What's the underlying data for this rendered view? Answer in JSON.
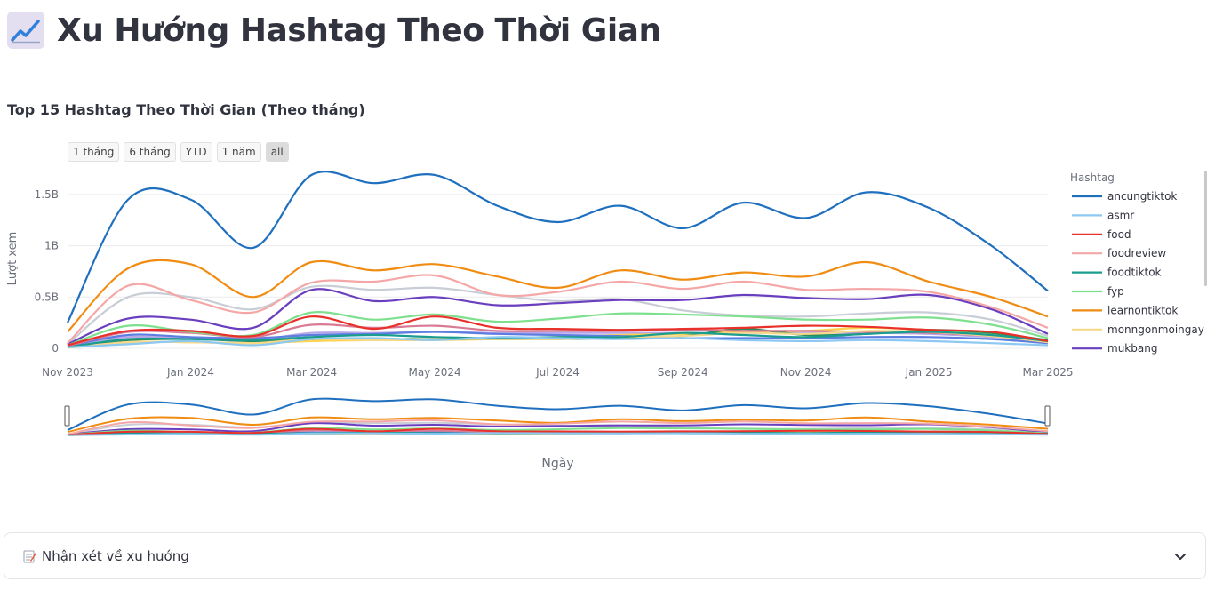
{
  "page": {
    "title": "Xu Hướng Hashtag Theo Thời Gian",
    "title_icon": "chart-increasing-icon"
  },
  "section": {
    "subtitle": "Top 15 Hashtag Theo Thời Gian (Theo tháng)"
  },
  "range_selector": {
    "buttons": [
      "1 tháng",
      "6 tháng",
      "YTD",
      "1 năm",
      "all"
    ],
    "active": "all"
  },
  "expander": {
    "label": "Nhận xét về xu hướng",
    "icon": "memo-icon",
    "chevron": "chevron-down-icon"
  },
  "chart_data": {
    "type": "line",
    "title": "",
    "xlabel": "Ngày",
    "ylabel": "Lượt xem",
    "x": [
      "2023-11-01",
      "2023-12-01",
      "2024-01-01",
      "2024-02-01",
      "2024-03-01",
      "2024-04-01",
      "2024-05-01",
      "2024-06-01",
      "2024-07-01",
      "2024-08-01",
      "2024-09-01",
      "2024-10-01",
      "2024-11-01",
      "2024-12-01",
      "2025-01-01",
      "2025-02-01",
      "2025-03-01"
    ],
    "x_ticks": [
      "Nov 2023",
      "Jan 2024",
      "Mar 2024",
      "May 2024",
      "Jul 2024",
      "Sep 2024",
      "Nov 2024",
      "Jan 2025",
      "Mar 2025"
    ],
    "y_ticks": [
      "0",
      "0.5B",
      "1B",
      "1.5B"
    ],
    "ylim": [
      0,
      1750000000
    ],
    "legend_title": "Hashtag",
    "legend_position": "right",
    "grid": true,
    "range_slider": true,
    "series": [
      {
        "name": "ancungtiktok",
        "color": "#1f6fbf",
        "values": [
          250000000,
          1450000000,
          1450000000,
          980000000,
          1690000000,
          1610000000,
          1690000000,
          1390000000,
          1230000000,
          1390000000,
          1170000000,
          1420000000,
          1270000000,
          1520000000,
          1370000000,
          1000000000,
          560000000
        ]
      },
      {
        "name": "asmr",
        "color": "#8cc8f2",
        "values": [
          10000000,
          40000000,
          70000000,
          30000000,
          90000000,
          100000000,
          80000000,
          110000000,
          100000000,
          90000000,
          100000000,
          80000000,
          70000000,
          80000000,
          70000000,
          50000000,
          30000000
        ]
      },
      {
        "name": "food",
        "color": "#e8312a",
        "values": [
          30000000,
          170000000,
          170000000,
          120000000,
          310000000,
          190000000,
          310000000,
          200000000,
          190000000,
          180000000,
          190000000,
          200000000,
          220000000,
          210000000,
          180000000,
          160000000,
          70000000
        ]
      },
      {
        "name": "foodreview",
        "color": "#f5a6a6",
        "values": [
          50000000,
          610000000,
          470000000,
          350000000,
          640000000,
          650000000,
          710000000,
          520000000,
          550000000,
          650000000,
          580000000,
          650000000,
          570000000,
          580000000,
          550000000,
          400000000,
          200000000
        ]
      },
      {
        "name": "foodtiktok",
        "color": "#1a9c8f",
        "values": [
          10000000,
          90000000,
          90000000,
          80000000,
          110000000,
          130000000,
          110000000,
          100000000,
          110000000,
          110000000,
          150000000,
          130000000,
          110000000,
          140000000,
          160000000,
          130000000,
          70000000
        ]
      },
      {
        "name": "fyp",
        "color": "#7ee08f",
        "values": [
          30000000,
          220000000,
          160000000,
          130000000,
          350000000,
          280000000,
          330000000,
          260000000,
          290000000,
          340000000,
          330000000,
          310000000,
          280000000,
          280000000,
          300000000,
          230000000,
          100000000
        ]
      },
      {
        "name": "learnontiktok",
        "color": "#f08c12",
        "values": [
          160000000,
          780000000,
          820000000,
          500000000,
          840000000,
          760000000,
          820000000,
          700000000,
          590000000,
          760000000,
          670000000,
          740000000,
          700000000,
          840000000,
          650000000,
          500000000,
          310000000
        ]
      },
      {
        "name": "monngonmoingay",
        "color": "#f5d98a",
        "values": [
          5000000,
          60000000,
          60000000,
          50000000,
          90000000,
          80000000,
          90000000,
          90000000,
          90000000,
          110000000,
          120000000,
          150000000,
          140000000,
          170000000,
          160000000,
          120000000,
          60000000
        ]
      },
      {
        "name": "mukbang",
        "color": "#6a3fbf",
        "values": [
          40000000,
          290000000,
          280000000,
          200000000,
          570000000,
          460000000,
          500000000,
          420000000,
          440000000,
          470000000,
          470000000,
          520000000,
          490000000,
          480000000,
          520000000,
          380000000,
          140000000
        ]
      },
      {
        "name": "",
        "color": "#c9cdd6",
        "values": [
          40000000,
          500000000,
          500000000,
          380000000,
          600000000,
          570000000,
          590000000,
          520000000,
          460000000,
          480000000,
          370000000,
          320000000,
          310000000,
          340000000,
          350000000,
          280000000,
          120000000
        ]
      },
      {
        "name": "",
        "color": "#d97a95",
        "values": [
          20000000,
          160000000,
          150000000,
          110000000,
          230000000,
          200000000,
          220000000,
          170000000,
          170000000,
          170000000,
          180000000,
          170000000,
          170000000,
          160000000,
          150000000,
          120000000,
          60000000
        ]
      },
      {
        "name": "",
        "color": "#5c7ee0",
        "values": [
          20000000,
          130000000,
          110000000,
          100000000,
          130000000,
          140000000,
          160000000,
          140000000,
          130000000,
          120000000,
          100000000,
          100000000,
          100000000,
          110000000,
          110000000,
          90000000,
          50000000
        ]
      },
      {
        "name": "",
        "color": "#2a8a5c",
        "values": [
          10000000,
          80000000,
          90000000,
          70000000,
          90000000,
          90000000,
          90000000,
          90000000,
          90000000,
          100000000,
          120000000,
          190000000,
          130000000,
          140000000,
          180000000,
          150000000,
          80000000
        ]
      },
      {
        "name": "",
        "color": "#ffd34d",
        "values": [
          10000000,
          60000000,
          60000000,
          50000000,
          70000000,
          80000000,
          80000000,
          90000000,
          110000000,
          130000000,
          140000000,
          160000000,
          170000000,
          200000000,
          180000000,
          140000000,
          80000000
        ]
      },
      {
        "name": "",
        "color": "#b8a7e8",
        "values": [
          20000000,
          110000000,
          100000000,
          80000000,
          150000000,
          150000000,
          160000000,
          150000000,
          150000000,
          150000000,
          150000000,
          150000000,
          150000000,
          150000000,
          140000000,
          110000000,
          60000000
        ]
      }
    ]
  }
}
